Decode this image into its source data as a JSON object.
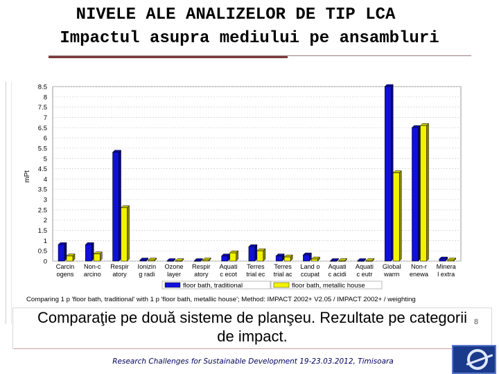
{
  "slide": {
    "title_line1": "NIVELE ALE ANALIZELOR DE TIP LCA",
    "title_line2": "Impactul asupra mediului pe ansambluri",
    "caption_line1": "Comparaţie pe două sisteme de planşeu. Rezultate pe categorii",
    "caption_line2": "de impact.",
    "footer": "Research Challenges for Sustainable Development 19-23.03.2012, Timisoara",
    "page_number": "8"
  },
  "colors": {
    "series1": "#1010d8",
    "series2": "#f2f200",
    "grid": "#cfcfcf"
  },
  "chart_data": {
    "type": "bar",
    "ylabel": "mPt",
    "ylim": [
      0,
      8.5
    ],
    "yticks": [
      "0",
      "0.5",
      "1",
      "1.5",
      "2",
      "2.5",
      "3",
      "3.5",
      "4",
      "4.5",
      "5",
      "5.5",
      "6",
      "6.5",
      "7",
      "7.5",
      "8",
      "8.5"
    ],
    "categories": [
      [
        "Carcin",
        "ogens"
      ],
      [
        "Non-c",
        "arcino"
      ],
      [
        "Respir",
        "atory"
      ],
      [
        "Ionizin",
        "g radi"
      ],
      [
        "Ozone",
        "layer"
      ],
      [
        "Respir",
        "atory"
      ],
      [
        "Aquati",
        "c ecot"
      ],
      [
        "Terres",
        "trial ec"
      ],
      [
        "Terres",
        "trial ac"
      ],
      [
        "Land o",
        "ccupat"
      ],
      [
        "Aquati",
        "c acidi"
      ],
      [
        "Aquati",
        "c eutr"
      ],
      [
        "Global",
        "warm"
      ],
      [
        "Non-r",
        "enewa"
      ],
      [
        "Minera",
        "l extra"
      ]
    ],
    "series": [
      {
        "name": "floor bath, traditional",
        "values": [
          0.8,
          0.8,
          5.3,
          0.05,
          0.02,
          0.02,
          0.25,
          0.7,
          0.25,
          0.3,
          0.02,
          0.02,
          8.5,
          6.5,
          0.1
        ]
      },
      {
        "name": "floor bath, metallic house",
        "values": [
          0.25,
          0.35,
          2.6,
          0.05,
          0.02,
          0.05,
          0.4,
          0.5,
          0.2,
          0.1,
          0.02,
          0.02,
          4.3,
          6.6,
          0.05
        ]
      }
    ],
    "legend_placement": "bottom",
    "footnote": "Comparing 1 p 'floor bath, traditional' with 1 p 'floor bath, metallic house'; Method: IMPACT 2002+ V2.05 / IMPACT 2002+ / weighting"
  }
}
